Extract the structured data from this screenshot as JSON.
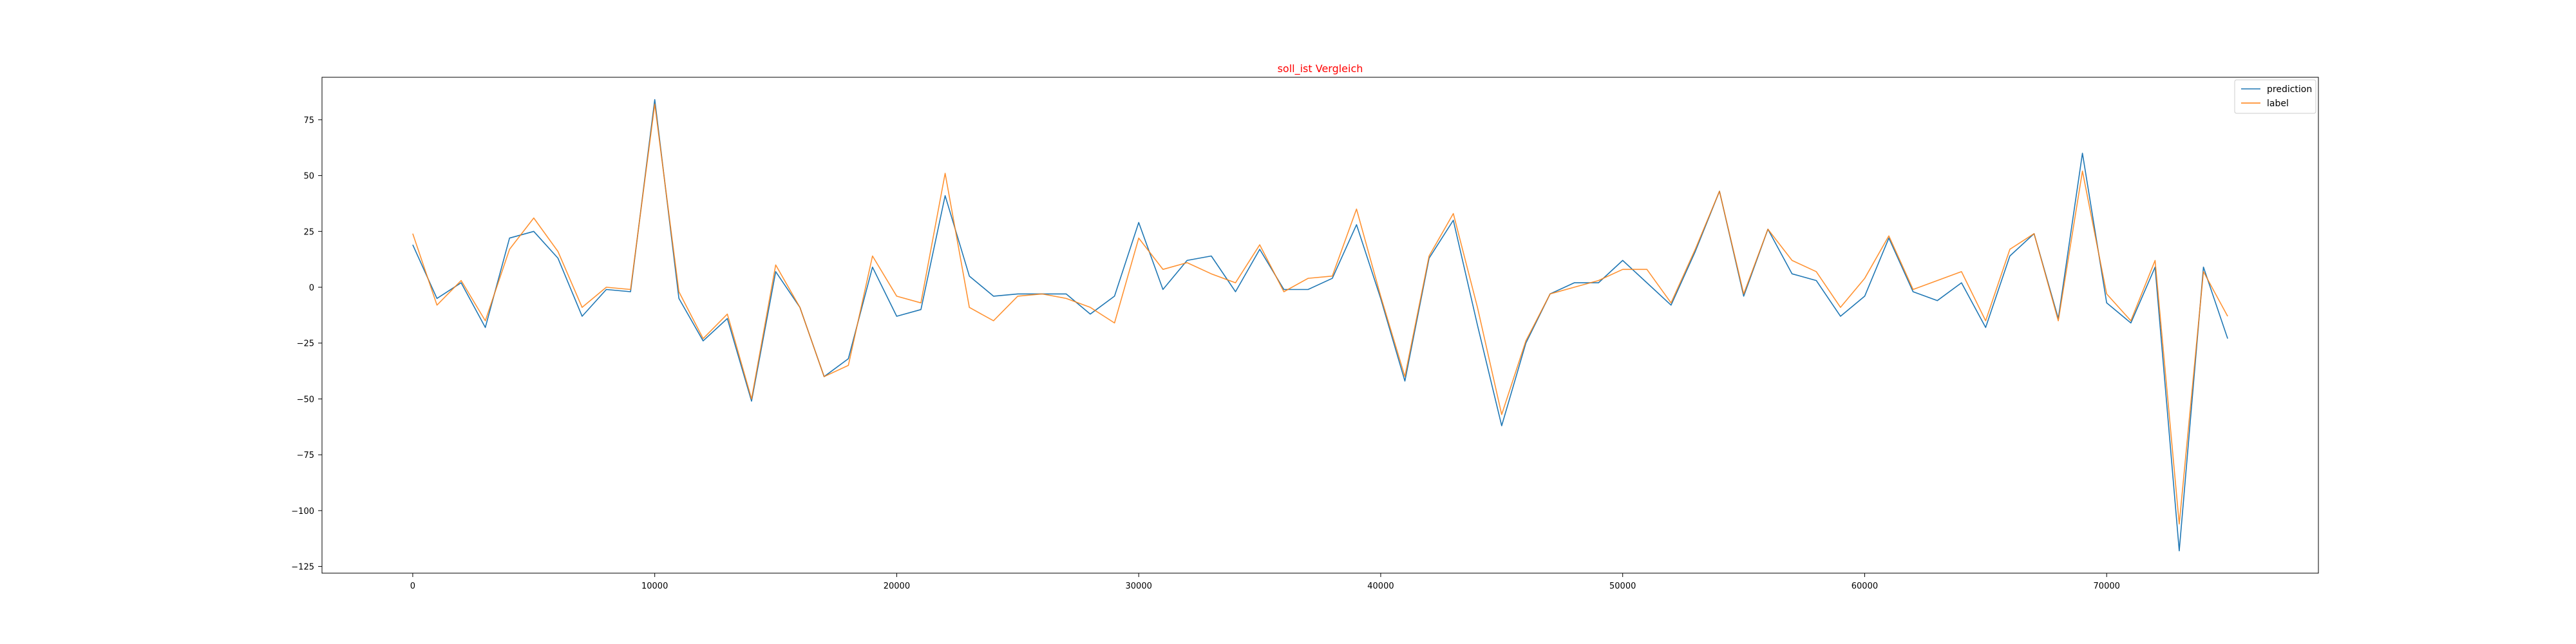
{
  "colors": {
    "title": "#ff0000",
    "prediction": "#1f77b4",
    "label": "#ff7f0e",
    "axes": "#000000",
    "legend_border": "#cccccc"
  },
  "chart_data": {
    "type": "line",
    "title": "soll_ist Vergleich",
    "xlabel": "",
    "ylabel": "",
    "xlim": [
      -3750,
      78750
    ],
    "ylim": [
      -128,
      94
    ],
    "x_ticks": [
      0,
      10000,
      20000,
      30000,
      40000,
      50000,
      60000,
      70000
    ],
    "x_tick_labels": [
      "0",
      "10000",
      "20000",
      "30000",
      "40000",
      "50000",
      "60000",
      "70000"
    ],
    "y_ticks": [
      75,
      50,
      25,
      0,
      -25,
      -50,
      -75,
      -100,
      -125
    ],
    "y_tick_labels": [
      "75",
      "50",
      "25",
      "0",
      "−25",
      "−50",
      "−75",
      "−100",
      "−125"
    ],
    "grid": false,
    "legend_position": "top-right",
    "x": [
      0,
      1000,
      2000,
      3000,
      4000,
      5000,
      6000,
      7000,
      8000,
      9000,
      10000,
      11000,
      12000,
      13000,
      14000,
      15000,
      16000,
      17000,
      18000,
      19000,
      20000,
      21000,
      22000,
      23000,
      24000,
      25000,
      26000,
      27000,
      28000,
      29000,
      30000,
      31000,
      32000,
      33000,
      34000,
      35000,
      36000,
      37000,
      38000,
      39000,
      40000,
      41000,
      42000,
      43000,
      44000,
      45000,
      46000,
      47000,
      48000,
      49000,
      50000,
      51000,
      52000,
      53000,
      54000,
      55000,
      56000,
      57000,
      58000,
      59000,
      60000,
      61000,
      62000,
      63000,
      64000,
      65000,
      66000,
      67000,
      68000,
      69000,
      70000,
      71000,
      72000,
      73000,
      74000,
      75000
    ],
    "series": [
      {
        "name": "prediction",
        "values": [
          19,
          -5,
          2,
          -18,
          22,
          25,
          13,
          -13,
          -1,
          -2,
          84,
          -5,
          -24,
          -14,
          -51,
          7,
          -9,
          -40,
          -32,
          9,
          -13,
          -10,
          41,
          5,
          -4,
          -3,
          -3,
          -3,
          -12,
          -4,
          29,
          -1,
          12,
          14,
          -2,
          17,
          -1,
          -1,
          4,
          28,
          -5,
          -42,
          13,
          30,
          -17,
          -62,
          -25,
          -3,
          2,
          2,
          12,
          2,
          -8,
          16,
          43,
          -4,
          26,
          6,
          3,
          -13,
          -4,
          22,
          -2,
          -6,
          2,
          -18,
          14,
          24,
          -14,
          60,
          -7,
          -16,
          9,
          -118,
          9,
          -23
        ]
      },
      {
        "name": "label",
        "values": [
          24,
          -8,
          3,
          -15,
          17,
          31,
          16,
          -9,
          0,
          -1,
          82,
          -2,
          -23,
          -12,
          -50,
          10,
          -9,
          -40,
          -35,
          14,
          -4,
          -7,
          51,
          -9,
          -15,
          -4,
          -3,
          -5,
          -9,
          -16,
          22,
          8,
          11,
          6,
          2,
          19,
          -2,
          4,
          5,
          35,
          -4,
          -40,
          14,
          33,
          -9,
          -57,
          -24,
          -3,
          0,
          3,
          8,
          8,
          -7,
          17,
          43,
          -3,
          26,
          12,
          7,
          -9,
          4,
          23,
          -1,
          3,
          7,
          -15,
          17,
          24,
          -15,
          52,
          -3,
          -15,
          12,
          -106,
          7,
          -13
        ]
      }
    ]
  }
}
